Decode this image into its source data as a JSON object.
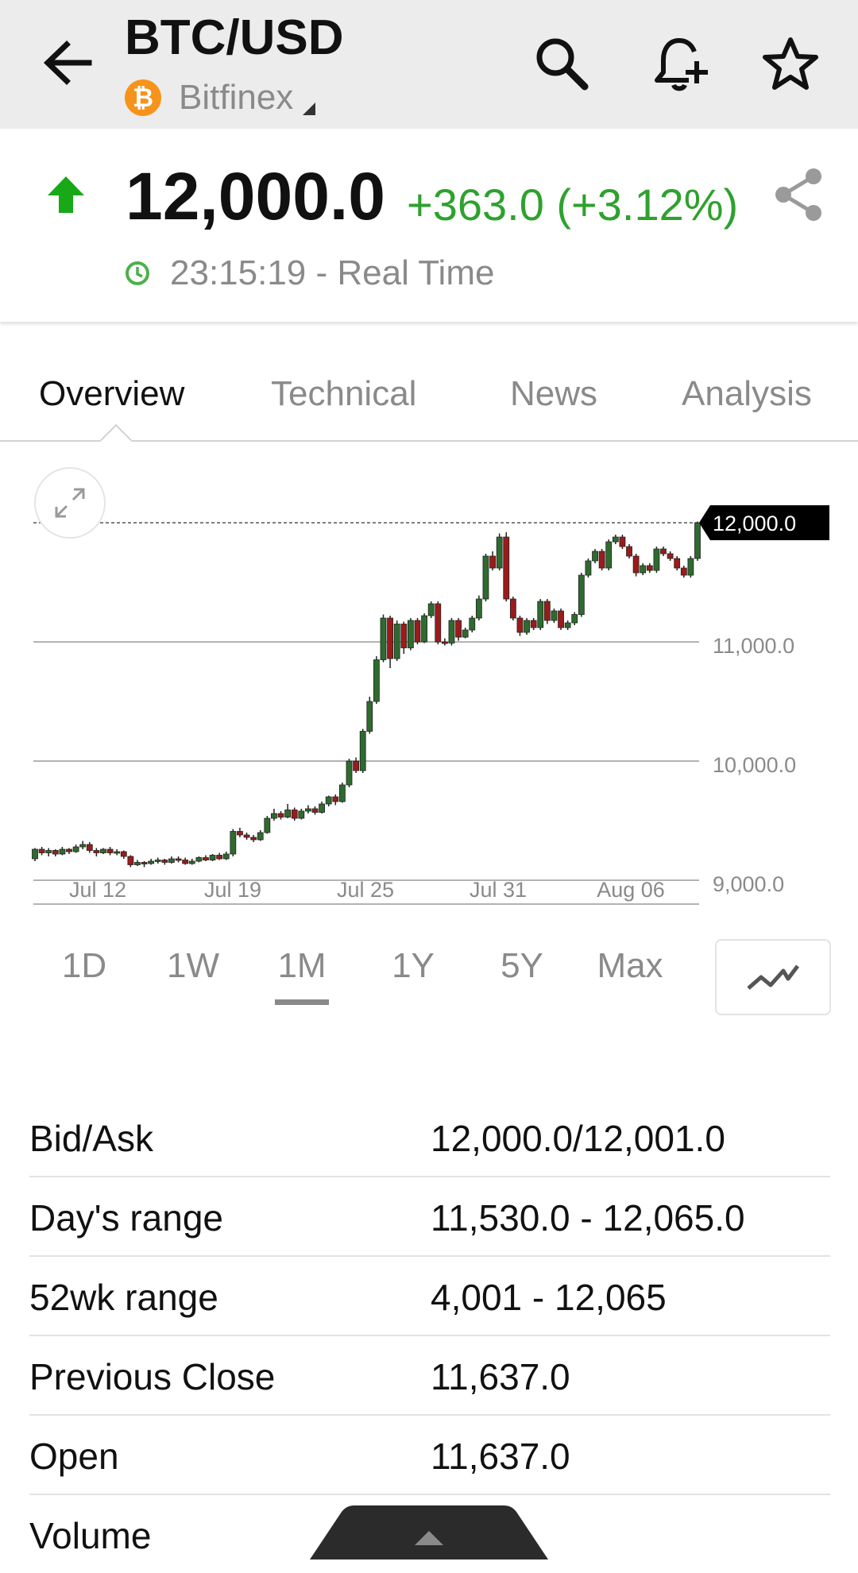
{
  "header": {
    "title": "BTC/USD",
    "exchange": "Bitfinex",
    "coin_symbol": "₿",
    "icons": [
      "back-arrow-icon",
      "search-icon",
      "add-alert-icon",
      "star-icon"
    ]
  },
  "quote": {
    "price": "12,000.0",
    "change": "+363.0 (+3.12%)",
    "time": "23:15:19 - Real Time",
    "up_color": "#2ea12e"
  },
  "tabs": [
    {
      "label": "Overview",
      "active": true
    },
    {
      "label": "Technical",
      "active": false
    },
    {
      "label": "News",
      "active": false
    },
    {
      "label": "Analysis",
      "active": false
    }
  ],
  "chart_data": {
    "type": "candlestick",
    "y_ticks": [
      "11,000.0",
      "10,000.0",
      "9,000.0"
    ],
    "x_ticks": [
      "Jul 12",
      "Jul 19",
      "Jul 25",
      "Jul 31",
      "Aug 06"
    ],
    "current_price_label": "12,000.0",
    "ylim": [
      9000,
      12000
    ],
    "grid": true,
    "up_color": "#2e6b2e",
    "down_color": "#9b1b1b",
    "candles": [
      [
        9180,
        9260,
        9160,
        9270
      ],
      [
        9260,
        9230,
        9210,
        9280
      ],
      [
        9230,
        9250,
        9200,
        9270
      ],
      [
        9250,
        9220,
        9200,
        9260
      ],
      [
        9220,
        9260,
        9210,
        9280
      ],
      [
        9260,
        9240,
        9220,
        9270
      ],
      [
        9240,
        9280,
        9230,
        9300
      ],
      [
        9280,
        9300,
        9260,
        9330
      ],
      [
        9300,
        9250,
        9230,
        9320
      ],
      [
        9250,
        9230,
        9200,
        9270
      ],
      [
        9230,
        9260,
        9220,
        9270
      ],
      [
        9260,
        9230,
        9210,
        9280
      ],
      [
        9230,
        9240,
        9210,
        9260
      ],
      [
        9240,
        9200,
        9180,
        9250
      ],
      [
        9200,
        9130,
        9110,
        9210
      ],
      [
        9130,
        9150,
        9120,
        9170
      ],
      [
        9150,
        9140,
        9110,
        9160
      ],
      [
        9140,
        9160,
        9130,
        9180
      ],
      [
        9160,
        9170,
        9140,
        9190
      ],
      [
        9170,
        9150,
        9130,
        9180
      ],
      [
        9150,
        9180,
        9140,
        9200
      ],
      [
        9180,
        9170,
        9150,
        9200
      ],
      [
        9170,
        9140,
        9130,
        9190
      ],
      [
        9140,
        9160,
        9130,
        9180
      ],
      [
        9160,
        9190,
        9150,
        9200
      ],
      [
        9190,
        9170,
        9160,
        9210
      ],
      [
        9170,
        9210,
        9160,
        9220
      ],
      [
        9210,
        9180,
        9170,
        9230
      ],
      [
        9180,
        9220,
        9170,
        9240
      ],
      [
        9220,
        9410,
        9200,
        9430
      ],
      [
        9410,
        9380,
        9360,
        9440
      ],
      [
        9380,
        9360,
        9340,
        9400
      ],
      [
        9360,
        9340,
        9320,
        9380
      ],
      [
        9340,
        9400,
        9330,
        9420
      ],
      [
        9400,
        9520,
        9390,
        9540
      ],
      [
        9520,
        9560,
        9500,
        9600
      ],
      [
        9560,
        9530,
        9510,
        9580
      ],
      [
        9530,
        9590,
        9520,
        9640
      ],
      [
        9590,
        9520,
        9500,
        9610
      ],
      [
        9520,
        9580,
        9510,
        9600
      ],
      [
        9580,
        9600,
        9560,
        9630
      ],
      [
        9600,
        9570,
        9550,
        9620
      ],
      [
        9570,
        9640,
        9560,
        9660
      ],
      [
        9640,
        9700,
        9620,
        9710
      ],
      [
        9700,
        9660,
        9630,
        9720
      ],
      [
        9660,
        9800,
        9650,
        9820
      ],
      [
        9800,
        10000,
        9780,
        10020
      ],
      [
        10000,
        9920,
        9900,
        10030
      ],
      [
        9920,
        10250,
        9900,
        10270
      ],
      [
        10250,
        10500,
        10230,
        10540
      ],
      [
        10500,
        10850,
        10480,
        10880
      ],
      [
        10850,
        11200,
        10830,
        11230
      ],
      [
        11200,
        10860,
        10780,
        11220
      ],
      [
        10860,
        11150,
        10840,
        11180
      ],
      [
        11150,
        10950,
        10900,
        11170
      ],
      [
        10950,
        11180,
        10930,
        11200
      ],
      [
        11180,
        11000,
        10980,
        11200
      ],
      [
        11000,
        11220,
        10990,
        11240
      ],
      [
        11220,
        11320,
        11200,
        11340
      ],
      [
        11320,
        11000,
        10980,
        11340
      ],
      [
        11000,
        10990,
        10970,
        11030
      ],
      [
        10990,
        11180,
        10970,
        11200
      ],
      [
        11180,
        11040,
        11010,
        11200
      ],
      [
        11040,
        11100,
        11030,
        11120
      ],
      [
        11100,
        11200,
        11080,
        11220
      ],
      [
        11200,
        11360,
        11180,
        11390
      ],
      [
        11360,
        11720,
        11340,
        11740
      ],
      [
        11720,
        11620,
        11600,
        11760
      ],
      [
        11620,
        11880,
        11600,
        11910
      ],
      [
        11880,
        11360,
        11340,
        11920
      ],
      [
        11360,
        11200,
        11180,
        11380
      ],
      [
        11200,
        11080,
        11050,
        11220
      ],
      [
        11080,
        11180,
        11060,
        11200
      ],
      [
        11180,
        11120,
        11100,
        11200
      ],
      [
        11120,
        11340,
        11100,
        11360
      ],
      [
        11340,
        11180,
        11150,
        11360
      ],
      [
        11180,
        11260,
        11160,
        11280
      ],
      [
        11260,
        11120,
        11100,
        11280
      ],
      [
        11120,
        11160,
        11100,
        11180
      ],
      [
        11160,
        11230,
        11140,
        11250
      ],
      [
        11230,
        11560,
        11210,
        11580
      ],
      [
        11560,
        11680,
        11540,
        11700
      ],
      [
        11680,
        11760,
        11660,
        11780
      ],
      [
        11760,
        11620,
        11600,
        11780
      ],
      [
        11620,
        11840,
        11600,
        11860
      ],
      [
        11840,
        11880,
        11820,
        11900
      ],
      [
        11880,
        11800,
        11780,
        11900
      ],
      [
        11800,
        11720,
        11700,
        11820
      ],
      [
        11720,
        11580,
        11550,
        11740
      ],
      [
        11580,
        11640,
        11560,
        11660
      ],
      [
        11640,
        11600,
        11580,
        11660
      ],
      [
        11600,
        11780,
        11580,
        11800
      ],
      [
        11780,
        11740,
        11720,
        11800
      ],
      [
        11740,
        11700,
        11680,
        11760
      ],
      [
        11700,
        11620,
        11600,
        11720
      ],
      [
        11620,
        11560,
        11540,
        11640
      ],
      [
        11560,
        11700,
        11540,
        11720
      ],
      [
        11700,
        12000,
        11680,
        12010
      ]
    ]
  },
  "ranges": [
    {
      "label": "1D",
      "active": false
    },
    {
      "label": "1W",
      "active": false
    },
    {
      "label": "1M",
      "active": true
    },
    {
      "label": "1Y",
      "active": false
    },
    {
      "label": "5Y",
      "active": false
    },
    {
      "label": "Max",
      "active": false
    }
  ],
  "stats": [
    {
      "label": "Bid/Ask",
      "value": "12,000.0/12,001.0"
    },
    {
      "label": "Day's range",
      "value": "11,530.0 - 12,065.0"
    },
    {
      "label": "52wk range",
      "value": "4,001 - 12,065"
    },
    {
      "label": "Previous Close",
      "value": "11,637.0"
    },
    {
      "label": "Open",
      "value": "11,637.0"
    },
    {
      "label": "Volume",
      "value": ""
    }
  ]
}
